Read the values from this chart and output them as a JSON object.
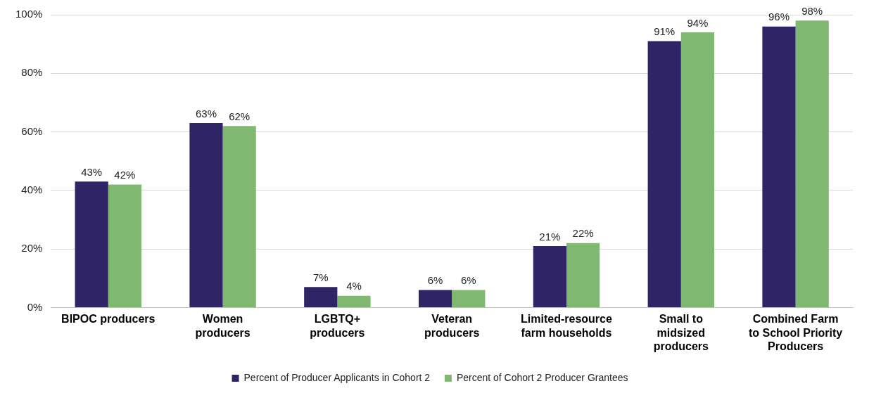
{
  "chart_data": {
    "type": "bar",
    "categories": [
      "BIPOC producers",
      "Women producers",
      "LGBTQ+ producers",
      "Veteran producers",
      "Limited-resource farm households",
      "Small to midsized producers",
      "Combined Farm to School Priority Producers"
    ],
    "series": [
      {
        "name": "Percent of Producer Applicants in Cohort 2",
        "color": "#2e2466",
        "values": [
          43,
          63,
          7,
          6,
          21,
          91,
          96
        ],
        "value_labels": [
          "43%",
          "63%",
          "7%",
          "6%",
          "21%",
          "91%",
          "96%"
        ]
      },
      {
        "name": "Percent of Cohort 2 Producer Grantees",
        "color": "#80b871",
        "values": [
          42,
          62,
          4,
          6,
          22,
          94,
          98
        ],
        "value_labels": [
          "42%",
          "62%",
          "4%",
          "6%",
          "22%",
          "94%",
          "98%"
        ]
      }
    ],
    "ylim": [
      0,
      100
    ],
    "yticks": [
      {
        "value": 0,
        "label": "0%"
      },
      {
        "value": 20,
        "label": "20%"
      },
      {
        "value": 40,
        "label": "40%"
      },
      {
        "value": 60,
        "label": "60%"
      },
      {
        "value": 80,
        "label": "80%"
      },
      {
        "value": 100,
        "label": "100%"
      }
    ],
    "grid": "y",
    "legend": "bottom"
  }
}
